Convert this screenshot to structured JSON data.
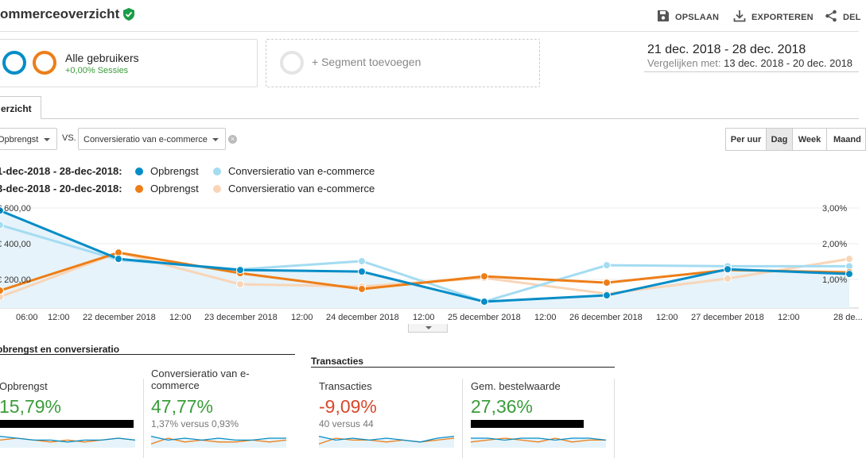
{
  "header": {
    "title": "ommerceoverzicht",
    "save_label": "OPSLAAN",
    "export_label": "EXPORTEREN",
    "share_label": "DEL"
  },
  "segments": {
    "active_name": "Alle gebruikers",
    "active_sub": "+0,00% Sessies",
    "add_label": "+ Segment toevoegen"
  },
  "dates": {
    "range": "21 dec. 2018 - 28 dec. 2018",
    "compare_label": "Vergelijken met:",
    "compare_range": "13 dec. 2018 - 20 dec. 2018"
  },
  "tab": {
    "label": "erzicht"
  },
  "controls": {
    "metric1": "Opbrengst",
    "vs": "VS.",
    "metric2": "Conversieratio van e-commerce",
    "granularity": [
      "Per uur",
      "Dag",
      "Week",
      "Maand"
    ],
    "active_granularity": "Dag"
  },
  "legend": {
    "row1_range": "1-dec-2018 - 28-dec-2018:",
    "row2_range": "3-dec-2018 - 20-dec-2018:",
    "series1": "Opbrengst",
    "series2": "Conversieratio van e-commerce"
  },
  "colors": {
    "opbrengst_current": "#058dc7",
    "conv_current": "#a4dcf2",
    "opbrengst_previous": "#ed7e17",
    "conv_previous": "#f8d5b8",
    "positive": "#3a9c3a",
    "negative": "#d9472b"
  },
  "chart_data": {
    "type": "line",
    "x_tick_labels": [
      "",
      "06:00",
      "12:00",
      "22 december 2018",
      "12:00",
      "23 december 2018",
      "12:00",
      "24 december 2018",
      "12:00",
      "25 december 2018",
      "12:00",
      "26 december 2018",
      "12:00",
      "27 december 2018",
      "12:00",
      "28 de..."
    ],
    "y_left_ticks": [
      "€ 600,00",
      "€ 400,00",
      "€ 200,00"
    ],
    "y_right_ticks": [
      "3,00%",
      "2,00%",
      "1,00%"
    ],
    "x": [
      "21 dec",
      "22 dec",
      "23 dec",
      "24 dec",
      "25 dec",
      "26 dec",
      "27 dec",
      "28 dec"
    ],
    "series": [
      {
        "name": "Opbrengst",
        "axis": "left",
        "values": [
          615,
          310,
          240,
          230,
          40,
          80,
          245,
          215
        ]
      },
      {
        "name": "Conversieratio van e-commerce",
        "axis": "right",
        "values": [
          2.62,
          1.52,
          1.22,
          1.48,
          0.2,
          1.35,
          1.32,
          1.32
        ]
      },
      {
        "name": "Opbrengst",
        "axis": "left",
        "values": [
          110,
          350,
          220,
          120,
          200,
          160,
          240,
          225
        ]
      },
      {
        "name": "Conversieratio van e-commerce",
        "axis": "right",
        "values": [
          0.35,
          1.75,
          0.75,
          0.68,
          0.95,
          0.45,
          0.93,
          1.55
        ]
      }
    ],
    "ylim_left": [
      0,
      600
    ],
    "ylim_right": [
      0,
      3
    ],
    "grid": true
  },
  "sections": {
    "left_title": "pbrengst en conversieratio",
    "right_title": "Transacties"
  },
  "metrics": [
    {
      "label": "Opbrengst",
      "value": "15,79%",
      "sub": "",
      "positive": true
    },
    {
      "label": "Conversieratio van e-commerce",
      "value": "47,77%",
      "sub": "1,37% versus 0,93%",
      "positive": true
    },
    {
      "label": "Transacties",
      "value": "-9,09%",
      "sub": "40 versus 44",
      "positive": false
    },
    {
      "label": "Gem. bestelwaarde",
      "value": "27,36%",
      "sub": "",
      "positive": true
    }
  ],
  "sparklines": [
    {
      "current": [
        6,
        5,
        4,
        4,
        3,
        4,
        4,
        5,
        4
      ],
      "previous": [
        4,
        5,
        4,
        3,
        4,
        3,
        4,
        5,
        4
      ]
    },
    {
      "current": [
        6,
        4,
        5,
        4,
        5,
        4,
        4,
        5,
        5
      ],
      "previous": [
        2,
        5,
        3,
        4,
        3,
        3,
        4,
        3,
        4
      ]
    },
    {
      "current": [
        6,
        4,
        5,
        4,
        5,
        4,
        3,
        5,
        6
      ],
      "previous": [
        2,
        5,
        4,
        4,
        3,
        4,
        3,
        4,
        5
      ]
    },
    {
      "current": [
        5,
        5,
        4,
        5,
        5,
        4,
        5,
        5,
        4
      ],
      "previous": [
        3,
        4,
        5,
        4,
        3,
        5,
        3,
        4,
        4
      ]
    }
  ]
}
